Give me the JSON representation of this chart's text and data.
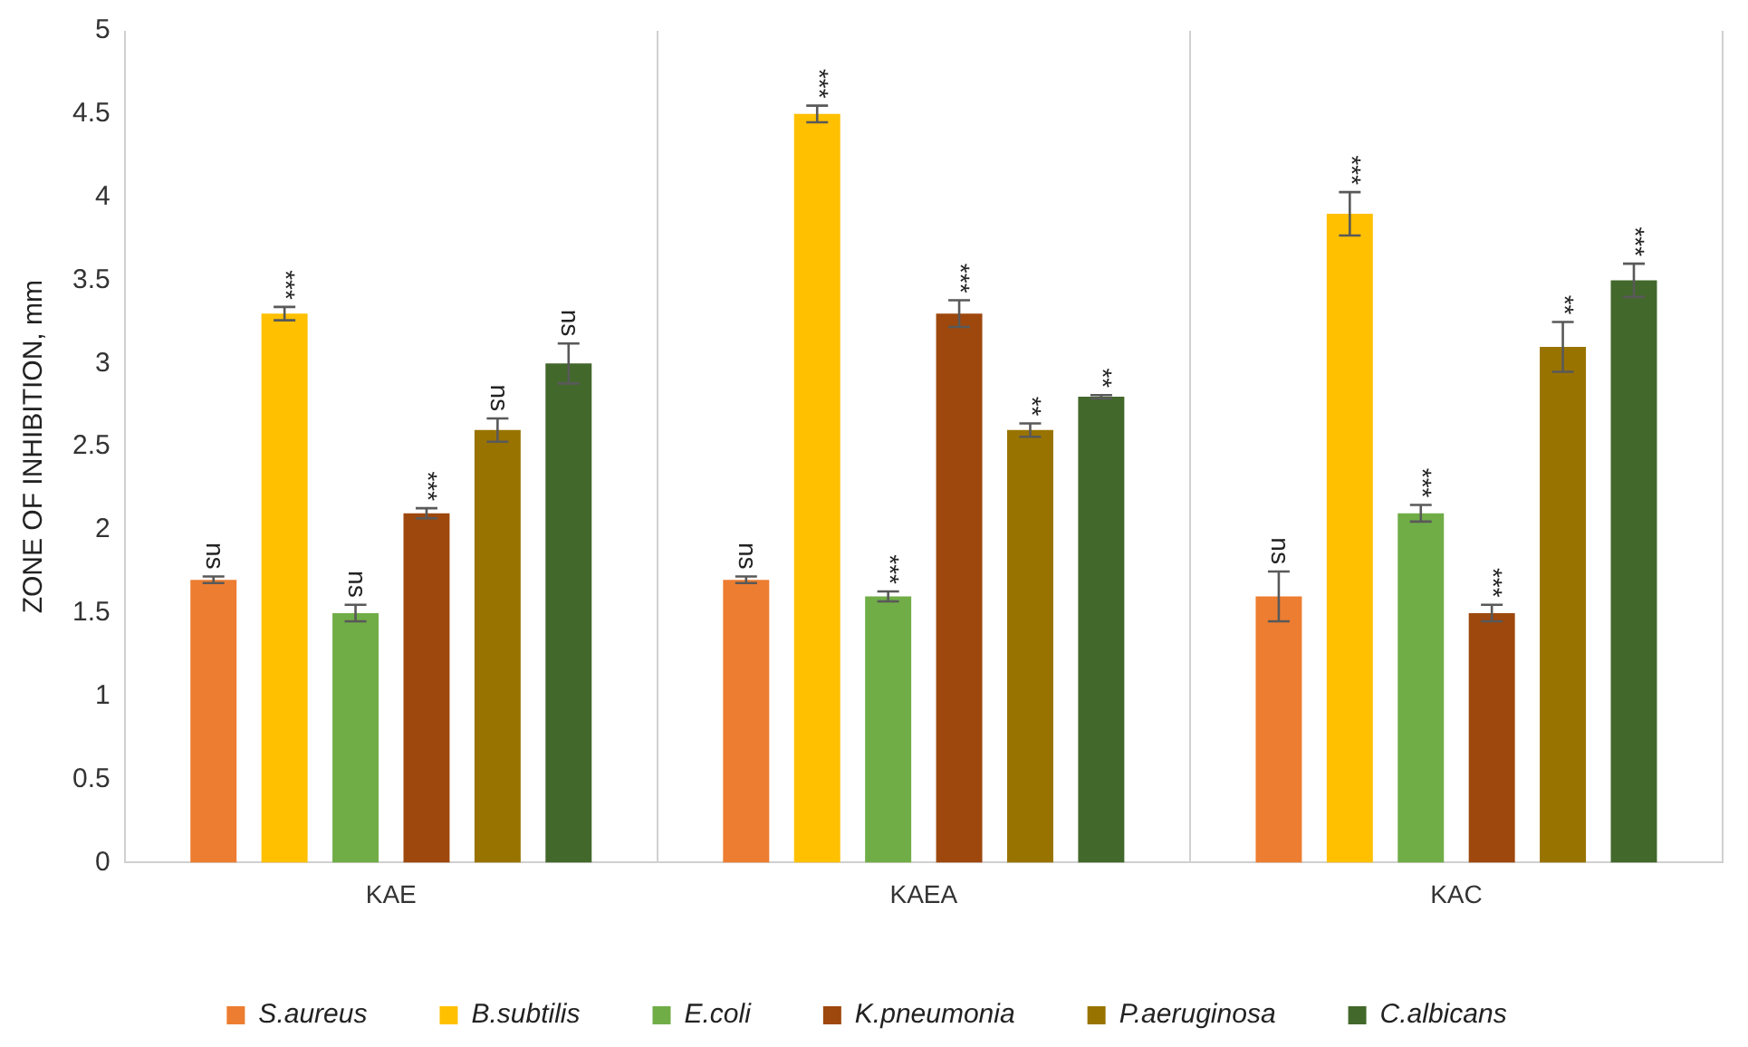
{
  "chart_data": {
    "type": "bar",
    "ylabel": "ZONE OF INHIBITION, mm",
    "categories": [
      "KAE",
      "KAEA",
      "KAC"
    ],
    "series": [
      {
        "name": "S.aureus",
        "color": "#ed7d31",
        "values": [
          1.7,
          1.7,
          1.6
        ],
        "errors": [
          0.02,
          0.02,
          0.15
        ],
        "value_labels": [
          "ns",
          "ns",
          "ns"
        ]
      },
      {
        "name": "B.subtilis",
        "color": "#ffc000",
        "values": [
          3.3,
          4.5,
          3.9
        ],
        "errors": [
          0.04,
          0.05,
          0.13
        ],
        "value_labels": [
          "***",
          "***",
          "***"
        ]
      },
      {
        "name": "E.coli",
        "color": "#70ad47",
        "values": [
          1.5,
          1.6,
          2.1
        ],
        "errors": [
          0.05,
          0.03,
          0.05
        ],
        "value_labels": [
          "ns",
          "***",
          "***"
        ]
      },
      {
        "name": "K.pneumonia",
        "color": "#9e480e",
        "values": [
          2.1,
          3.3,
          1.5
        ],
        "errors": [
          0.03,
          0.08,
          0.05
        ],
        "value_labels": [
          "***",
          "***",
          "***"
        ]
      },
      {
        "name": "P.aeruginosa",
        "color": "#997300",
        "values": [
          2.6,
          2.6,
          3.1
        ],
        "errors": [
          0.07,
          0.04,
          0.15
        ],
        "value_labels": [
          "ns",
          "**",
          "**"
        ]
      },
      {
        "name": "C.albicans",
        "color": "#43682b",
        "values": [
          3.0,
          2.8,
          3.5
        ],
        "errors": [
          0.12,
          0.01,
          0.1
        ],
        "value_labels": [
          "ns",
          "**",
          "***"
        ]
      }
    ],
    "ylim": [
      0,
      5
    ],
    "yticks": [
      0,
      0.5,
      1,
      1.5,
      2,
      2.5,
      3,
      3.5,
      4,
      4.5,
      5
    ],
    "grid": "x",
    "legend": "bottom"
  }
}
